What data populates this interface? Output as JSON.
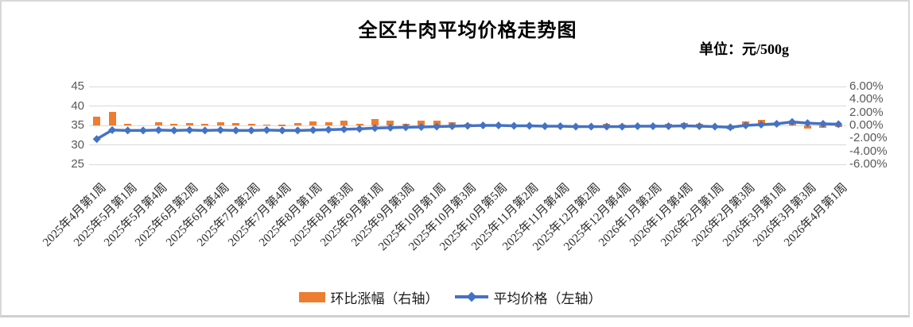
{
  "chart": {
    "title": "全区牛肉平均价格走势图",
    "unit_label": "单位：元/500g"
  },
  "colors": {
    "bar": "#ED7D31",
    "line": "#4472C4",
    "grid": "#D9D9D9",
    "axis_text": "#595959"
  },
  "chart_data": {
    "type": "combo_bar_line",
    "title": "全区牛肉平均价格走势图",
    "unit": "单位：元/500g",
    "grid": true,
    "legend_position": "bottom",
    "x_count": 49,
    "x_label_every": 2,
    "x_labels": [
      "2025年4月第1周",
      "2025年5月第1周",
      "2025年5月第4周",
      "2025年6月第2周",
      "2025年6月第4周",
      "2025年7月第2周",
      "2025年7月第4周",
      "2025年8月第1周",
      "2025年8月第3周",
      "2025年9月第1周",
      "2025年9月第3周",
      "2025年10月第1周",
      "2025年10月第3周",
      "2025年10月第5周",
      "2025年11月第2周",
      "2025年11月第4周",
      "2025年12月第2周",
      "2025年12月第4周",
      "2026年1月第2周",
      "2026年1月第4周",
      "2026年2月第1周",
      "2026年2月第3周",
      "2026年3月第1周",
      "2026年3月第3周",
      "2026年4月第1周"
    ],
    "left_axis": {
      "min": 25,
      "max": 45,
      "tick_values": [
        45,
        40,
        35,
        30,
        25
      ],
      "tick_labels": [
        "45",
        "40",
        "35",
        "30",
        "25"
      ]
    },
    "right_axis": {
      "min": -6,
      "max": 6,
      "tick_values": [
        6,
        4,
        2,
        0,
        -2,
        -4,
        -6
      ],
      "tick_labels": [
        "6.00%",
        "4.00%",
        "2.00%",
        "0.00%",
        "-2.00%",
        "-4.00%",
        "-6.00%"
      ]
    },
    "series": [
      {
        "name": "环比涨幅（右轴）",
        "type": "bar",
        "axis": "right",
        "color": "#ED7D31",
        "values": [
          1.4,
          2.1,
          0.3,
          0.0,
          0.5,
          0.3,
          0.4,
          0.25,
          0.5,
          0.35,
          0.2,
          0.15,
          0.1,
          0.35,
          0.6,
          0.5,
          0.75,
          0.25,
          0.95,
          0.8,
          0.3,
          0.7,
          0.8,
          0.45,
          0.2,
          0.1,
          0.0,
          -0.1,
          0.1,
          -0.1,
          0.0,
          -0.1,
          -0.2,
          0.3,
          0.1,
          0.0,
          0.1,
          0.3,
          0.35,
          0.3,
          -0.2,
          -0.6,
          0.6,
          0.9,
          0.4,
          0.5,
          -0.45,
          -0.35,
          -0.2
        ]
      },
      {
        "name": "平均价格（左轴）",
        "type": "line",
        "axis": "left",
        "color": "#4472C4",
        "values": [
          31.5,
          33.8,
          33.7,
          33.7,
          33.8,
          33.7,
          33.8,
          33.7,
          33.8,
          33.7,
          33.7,
          33.8,
          33.7,
          33.7,
          33.8,
          33.9,
          34.0,
          34.1,
          34.3,
          34.4,
          34.5,
          34.6,
          34.7,
          34.8,
          34.9,
          35.0,
          35.0,
          34.9,
          34.9,
          34.8,
          34.8,
          34.7,
          34.7,
          34.7,
          34.7,
          34.8,
          34.8,
          34.8,
          34.9,
          34.8,
          34.7,
          34.5,
          35.0,
          35.2,
          35.4,
          35.9,
          35.6,
          35.4,
          35.3
        ]
      }
    ]
  }
}
